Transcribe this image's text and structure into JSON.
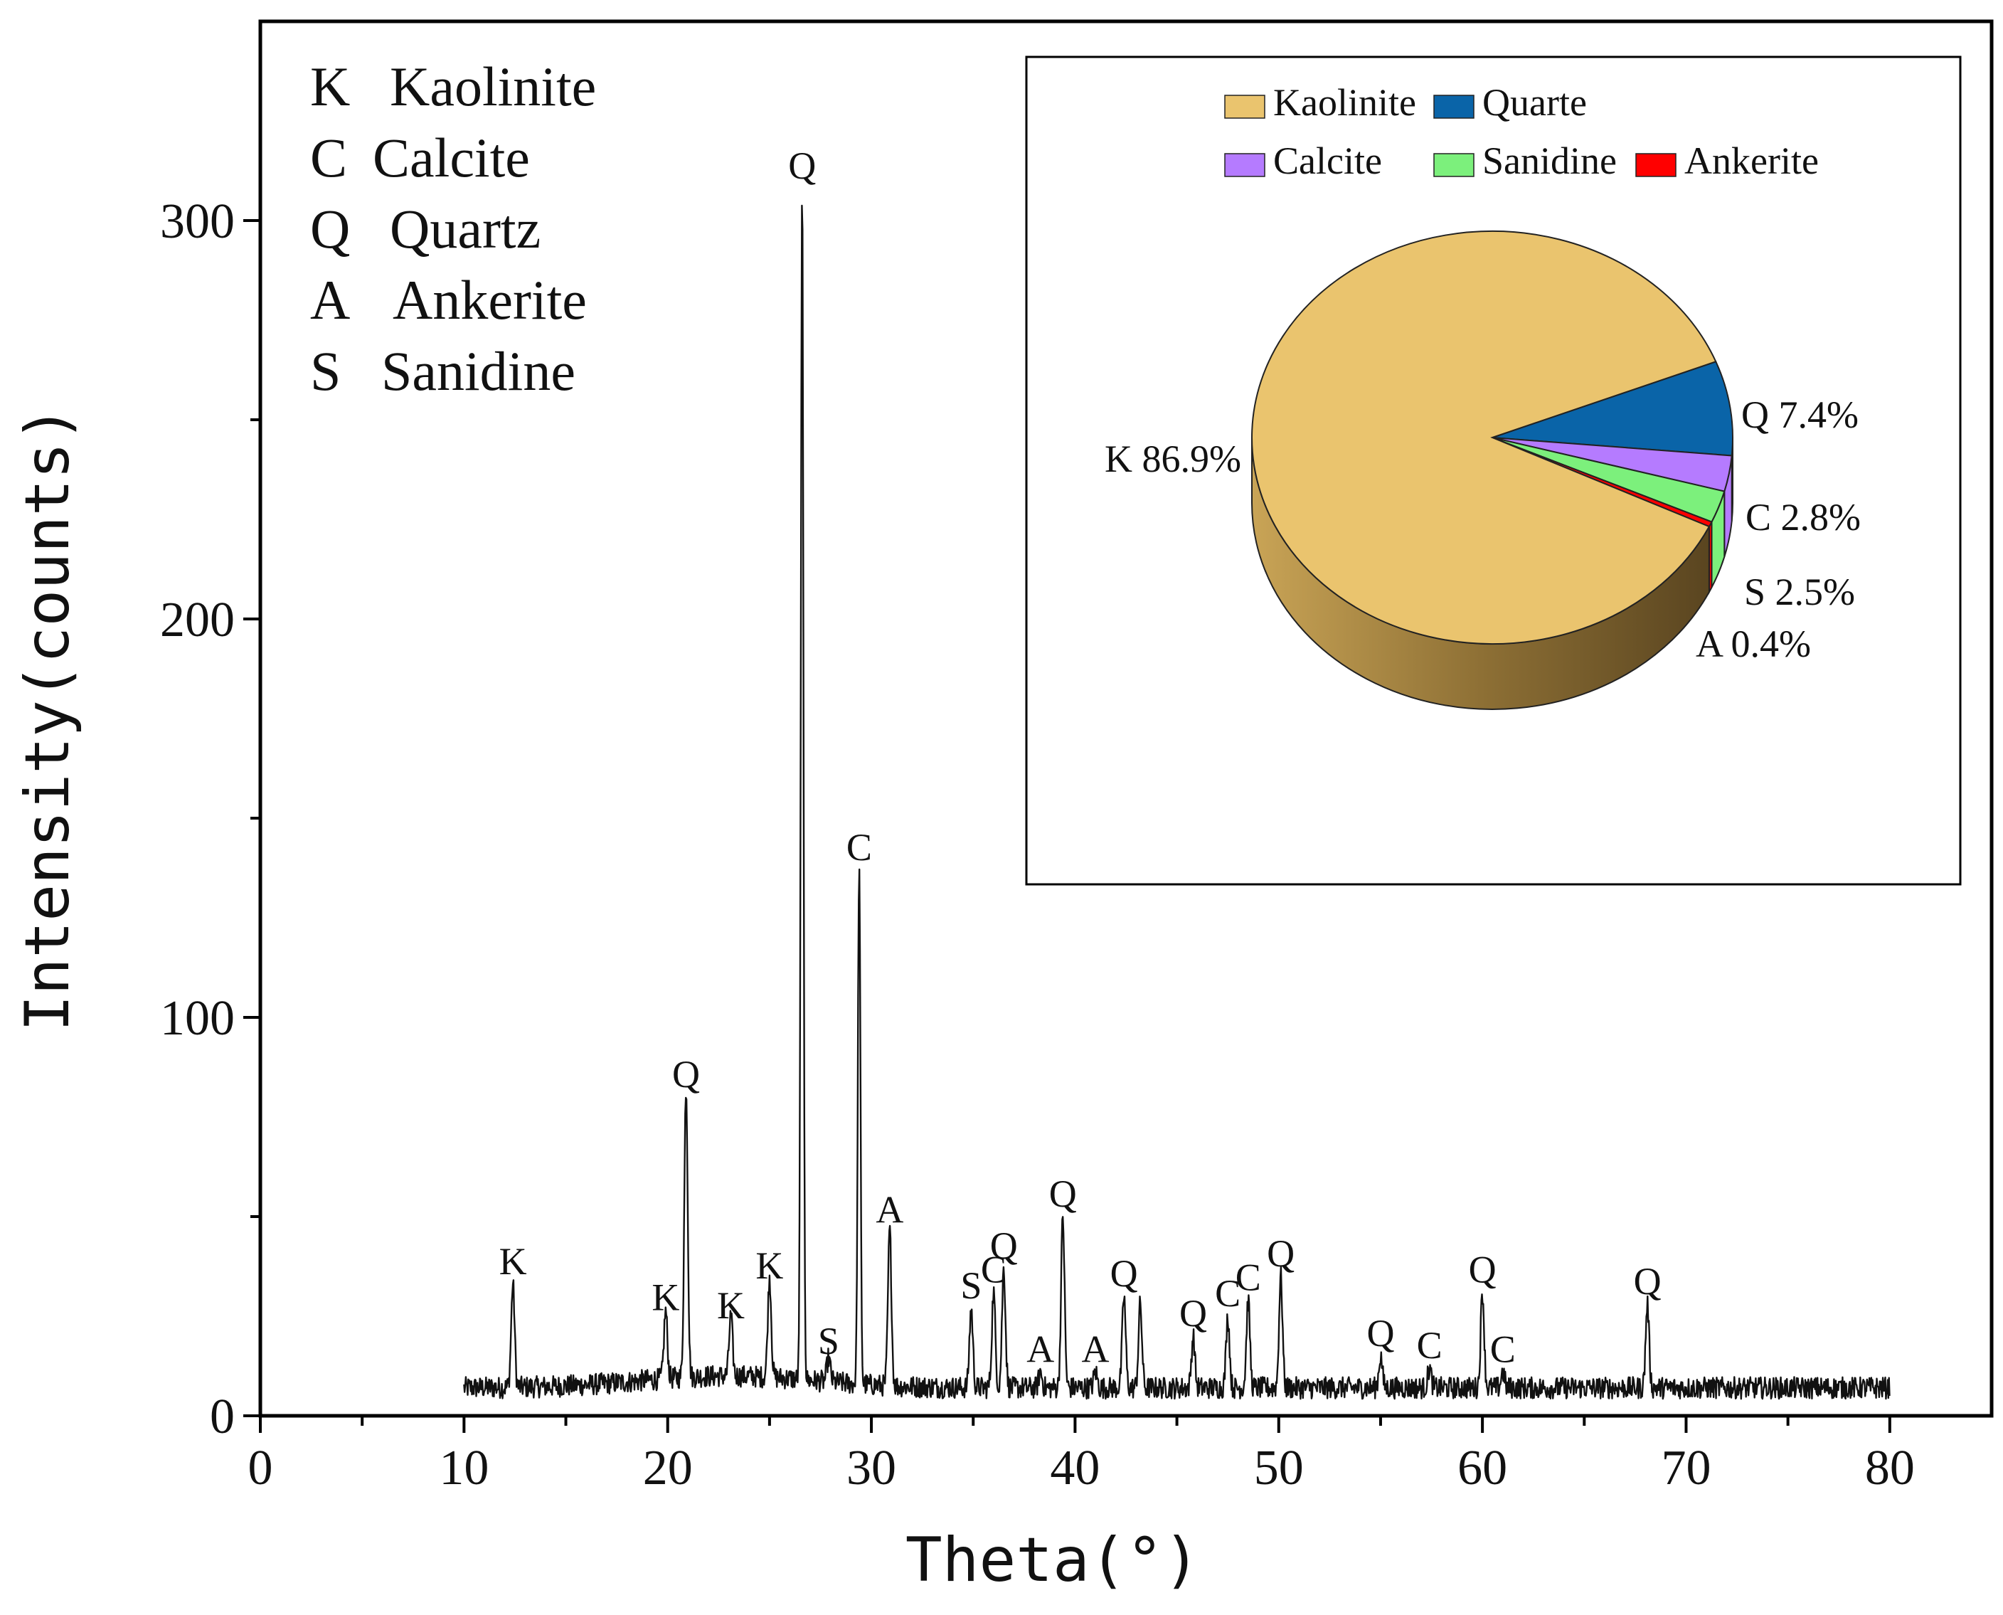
{
  "chart_data": [
    {
      "type": "line",
      "title": "",
      "xlabel": "Theta(°)",
      "ylabel": "Intensity(counts)",
      "xlim": [
        0,
        85
      ],
      "ylim": [
        0,
        350
      ],
      "xticks": [
        0,
        10,
        20,
        30,
        40,
        50,
        60,
        70,
        80
      ],
      "xtick_labels": [
        "0",
        "10",
        "20",
        "30",
        "40",
        "50",
        "60",
        "70",
        "80"
      ],
      "yticks": [
        0,
        100,
        200,
        300
      ],
      "ytick_labels": [
        "0",
        "100",
        "200",
        "300"
      ],
      "x_range": [
        10,
        80
      ],
      "baseline": 7,
      "peaks": [
        {
          "x": 12.4,
          "y": 33,
          "label": "K"
        },
        {
          "x": 19.9,
          "y": 24,
          "label": "K"
        },
        {
          "x": 20.9,
          "y": 80,
          "label": "Q"
        },
        {
          "x": 23.1,
          "y": 22,
          "label": "K"
        },
        {
          "x": 25.0,
          "y": 32,
          "label": "K"
        },
        {
          "x": 26.6,
          "y": 308,
          "label": "Q"
        },
        {
          "x": 27.9,
          "y": 13,
          "label": "S"
        },
        {
          "x": 29.4,
          "y": 137,
          "label": "C"
        },
        {
          "x": 30.9,
          "y": 46,
          "label": "A"
        },
        {
          "x": 34.9,
          "y": 27,
          "label": "S"
        },
        {
          "x": 36.0,
          "y": 31,
          "label": "C"
        },
        {
          "x": 36.5,
          "y": 37,
          "label": "Q"
        },
        {
          "x": 38.3,
          "y": 11,
          "label": "A"
        },
        {
          "x": 39.4,
          "y": 50,
          "label": "Q"
        },
        {
          "x": 41.0,
          "y": 11,
          "label": "A"
        },
        {
          "x": 42.4,
          "y": 30,
          "label": "Q"
        },
        {
          "x": 43.2,
          "y": 28,
          "label": ""
        },
        {
          "x": 45.8,
          "y": 20,
          "label": "Q"
        },
        {
          "x": 47.5,
          "y": 25,
          "label": "C"
        },
        {
          "x": 48.5,
          "y": 29,
          "label": "C"
        },
        {
          "x": 50.1,
          "y": 35,
          "label": "Q"
        },
        {
          "x": 55.0,
          "y": 15,
          "label": "Q"
        },
        {
          "x": 57.4,
          "y": 12,
          "label": "C"
        },
        {
          "x": 60.0,
          "y": 31,
          "label": "Q"
        },
        {
          "x": 61.0,
          "y": 11,
          "label": "C"
        },
        {
          "x": 68.1,
          "y": 28,
          "label": "Q"
        }
      ],
      "legend": [
        {
          "code": "K",
          "name": "Kaolinite"
        },
        {
          "code": "C",
          "name": "Calcite"
        },
        {
          "code": "Q",
          "name": "Quartz"
        },
        {
          "code": "A",
          "name": "Ankerite"
        },
        {
          "code": "S",
          "name": "Sanidine"
        }
      ],
      "legend_placement": "top-left"
    },
    {
      "type": "pie",
      "placement": "inset top-right",
      "legend": [
        "Kaolinite",
        "Quarte",
        "Calcite",
        "Sanidine",
        "Ankerite"
      ],
      "slices": [
        {
          "name": "Kaolinite",
          "value": 86.9,
          "label": "K 86.9%",
          "color": "#EAC46E"
        },
        {
          "name": "Quarte",
          "value": 7.4,
          "label": "Q 7.4%",
          "color": "#0A64A8"
        },
        {
          "name": "Calcite",
          "value": 2.8,
          "label": "C 2.8%",
          "color": "#B57BFF"
        },
        {
          "name": "Sanidine",
          "value": 2.5,
          "label": "S 2.5%",
          "color": "#7CF07C"
        },
        {
          "name": "Ankerite",
          "value": 0.4,
          "label": "A 0.4%",
          "color": "#FF0000"
        }
      ]
    }
  ]
}
